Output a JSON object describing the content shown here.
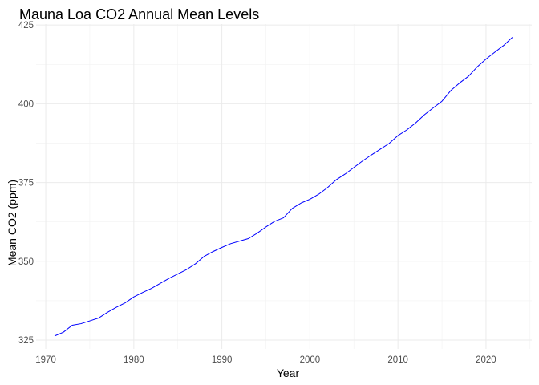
{
  "chart_data": {
    "type": "line",
    "title": "Mauna Loa CO2 Annual Mean Levels",
    "xlabel": "Year",
    "ylabel": "Mean CO2 (ppm)",
    "xlim": [
      1968.9,
      2025.2
    ],
    "ylim": [
      322.2,
      425.3
    ],
    "xticks": [
      1970,
      1980,
      1990,
      2000,
      2010,
      2020
    ],
    "yticks": [
      325,
      350,
      375,
      400,
      425
    ],
    "grid": true,
    "legend": "none",
    "series": [
      {
        "color": "#0000ff",
        "x": [
          1971,
          1972,
          1973,
          1974,
          1975,
          1976,
          1977,
          1978,
          1979,
          1980,
          1981,
          1982,
          1983,
          1984,
          1985,
          1986,
          1987,
          1988,
          1989,
          1990,
          1991,
          1992,
          1993,
          1994,
          1995,
          1996,
          1997,
          1998,
          1999,
          2000,
          2001,
          2002,
          2003,
          2004,
          2005,
          2006,
          2007,
          2008,
          2009,
          2010,
          2011,
          2012,
          2013,
          2014,
          2015,
          2016,
          2017,
          2018,
          2019,
          2020,
          2021,
          2022,
          2023
        ],
        "values": [
          326.3,
          327.5,
          329.7,
          330.2,
          331.1,
          332.0,
          333.8,
          335.4,
          336.8,
          338.7,
          340.1,
          341.4,
          343.0,
          344.6,
          346.0,
          347.4,
          349.2,
          351.6,
          353.1,
          354.4,
          355.6,
          356.4,
          357.2,
          358.9,
          360.9,
          362.7,
          363.8,
          366.8,
          368.5,
          369.7,
          371.3,
          373.4,
          375.9,
          377.7,
          379.8,
          381.9,
          383.8,
          385.6,
          387.4,
          389.9,
          391.7,
          393.9,
          396.5,
          398.7,
          400.8,
          404.2,
          406.6,
          408.7,
          411.7,
          414.2,
          416.4,
          418.5,
          421.1
        ]
      }
    ]
  }
}
